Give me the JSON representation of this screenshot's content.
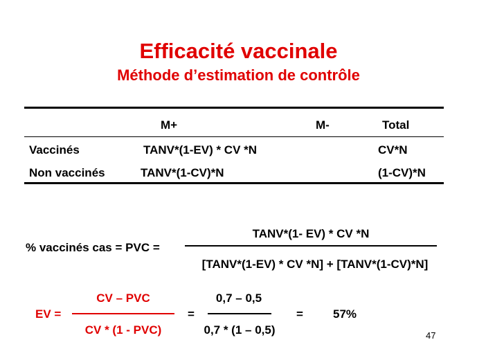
{
  "slide": {
    "title": "Efficacité vaccinale",
    "subtitle": "Méthode d’estimation de contrôle",
    "number": "47"
  },
  "table": {
    "headers": [
      "M+",
      "M-",
      "Total"
    ],
    "rows": [
      {
        "label": "Vaccinés",
        "m_plus": "TANV*(1-EV) * CV *N",
        "m_minus": "",
        "total": "CV*N"
      },
      {
        "label": "Non vaccinés",
        "m_plus": "TANV*(1-CV)*N",
        "m_minus": "",
        "total": "(1-CV)*N"
      }
    ]
  },
  "pvc_formula": {
    "lhs": "% vaccinés cas = PVC =",
    "numerator": "TANV*(1- EV) * CV *N",
    "denominator": "[TANV*(1-EV) * CV *N] + [TANV*(1-CV)*N]"
  },
  "ev_formula": {
    "lhs": "EV =",
    "numerator": "CV – PVC",
    "denominator": "CV * (1 - PVC)",
    "eq1": "=",
    "num2": "0,7 – 0,5",
    "den2": "0,7 * (1 – 0,5)",
    "eq2": "=",
    "result": "57%"
  },
  "colors": {
    "accent": "#e00000",
    "text": "#000000"
  }
}
